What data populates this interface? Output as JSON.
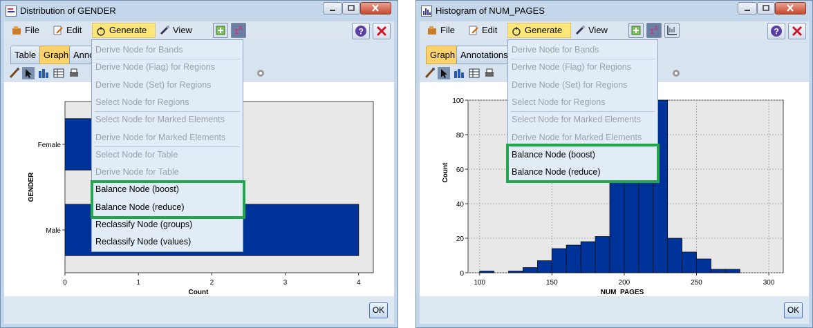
{
  "left_window": {
    "title": "Distribution of GENDER",
    "menu": {
      "file": "File",
      "edit": "Edit",
      "generate": "Generate",
      "view": "View"
    },
    "tabs": [
      "Table",
      "Graph",
      "Anno"
    ],
    "selected_tab": "Graph",
    "ok_label": "OK"
  },
  "right_window": {
    "title": "Histogram of NUM_PAGES",
    "menu": {
      "file": "File",
      "edit": "Edit",
      "generate": "Generate",
      "view": "View"
    },
    "tabs": [
      "Graph",
      "Annotations"
    ],
    "selected_tab": "Graph",
    "ok_label": "OK"
  },
  "left_generate_menu": [
    {
      "label": "Derive Node for Bands",
      "enabled": false
    },
    {
      "label": "Derive Node (Flag) for Regions",
      "enabled": false
    },
    {
      "label": "Derive Node (Set) for Regions",
      "enabled": false
    },
    {
      "label": "Select Node for Regions",
      "enabled": false
    },
    {
      "label": "Select Node for Marked Elements",
      "enabled": false
    },
    {
      "label": "Derive Node for Marked Elements",
      "enabled": false
    },
    {
      "label": "Select Node for Table",
      "enabled": false
    },
    {
      "label": "Derive Node for Table",
      "enabled": false
    },
    {
      "label": "Balance Node (boost)",
      "enabled": true,
      "highlighted": true
    },
    {
      "label": "Balance Node (reduce)",
      "enabled": true,
      "highlighted": true
    },
    {
      "label": "Reclassify Node (groups)",
      "enabled": true
    },
    {
      "label": "Reclassify Node (values)",
      "enabled": true
    }
  ],
  "right_generate_menu": [
    {
      "label": "Derive Node for Bands",
      "enabled": false
    },
    {
      "label": "Derive Node (Flag) for Regions",
      "enabled": false
    },
    {
      "label": "Derive Node (Set) for Regions",
      "enabled": false
    },
    {
      "label": "Select Node for Regions",
      "enabled": false
    },
    {
      "label": "Select Node for Marked Elements",
      "enabled": false
    },
    {
      "label": "Derive Node for Marked Elements",
      "enabled": false
    },
    {
      "label": "Balance Node (boost)",
      "enabled": true,
      "highlighted": true
    },
    {
      "label": "Balance Node (reduce)",
      "enabled": true,
      "highlighted": true
    }
  ],
  "highlight_color": "#21a64d",
  "chart_data": [
    {
      "type": "bar",
      "orientation": "horizontal",
      "categories": [
        "Female",
        "Male"
      ],
      "values": [
        1,
        4
      ],
      "xlabel": "Count",
      "ylabel": "GENDER",
      "xticks": [
        "0",
        "1",
        "2",
        "3",
        "4"
      ],
      "xlim": [
        0,
        4.2
      ],
      "bar_color": "#003399"
    },
    {
      "type": "bar",
      "subtype": "histogram",
      "bin_starts": [
        100,
        110,
        120,
        130,
        140,
        150,
        160,
        170,
        180,
        190,
        200,
        210,
        220,
        230,
        240,
        250,
        260,
        270
      ],
      "bin_width": 10,
      "values": [
        1,
        0,
        1,
        3,
        7,
        14,
        16,
        18,
        21,
        100,
        100,
        100,
        100,
        20,
        12,
        8,
        2,
        2
      ],
      "xlabel": "NUM_PAGES",
      "ylabel": "Count",
      "xticks": [
        "100",
        "150",
        "200",
        "250",
        "300"
      ],
      "yticks": [
        "0",
        "20",
        "40",
        "60",
        "80",
        "100"
      ],
      "xlim": [
        92,
        310
      ],
      "ylim": [
        0,
        100
      ],
      "grid": true,
      "bar_color": "#003399"
    }
  ]
}
